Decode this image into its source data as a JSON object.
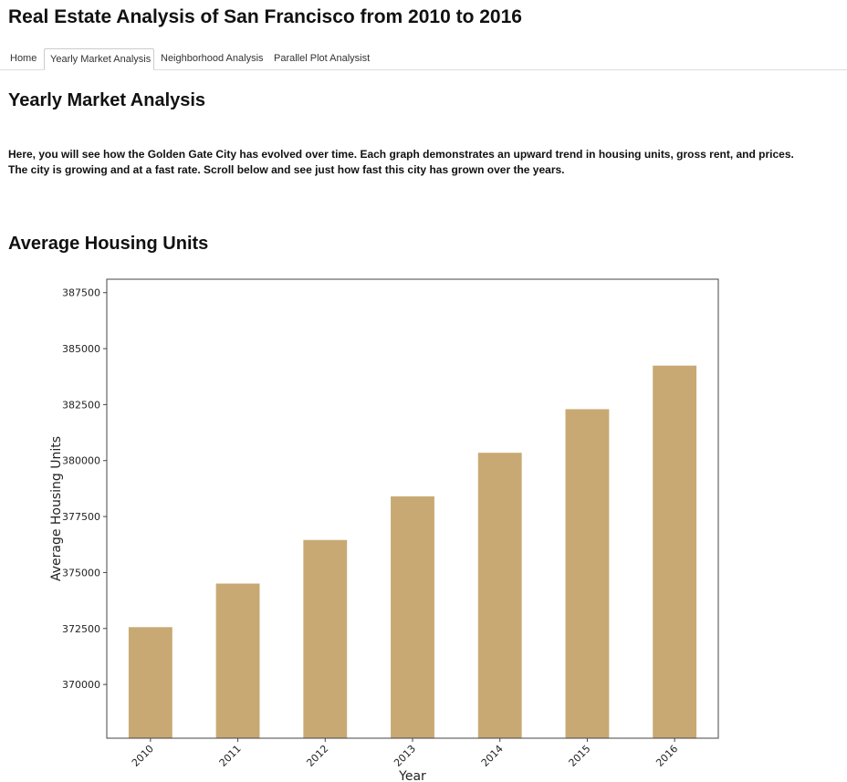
{
  "app": {
    "title": "Real Estate Analysis of San Francisco from 2010 to 2016"
  },
  "tabs": [
    {
      "label": "Home",
      "active": false
    },
    {
      "label": "Yearly Market Analysis",
      "active": true
    },
    {
      "label": "Neighborhood Analysis",
      "active": false
    },
    {
      "label": "Parallel Plot Analysist",
      "active": false
    }
  ],
  "section": {
    "title": "Yearly Market Analysis",
    "intro": "Here, you will see how the Golden Gate City has evolved over time. Each graph demonstrates an upward trend in housing units, gross rent, and prices. The city is growing and at a fast rate. Scroll below and see just how fast this city has grown over the years."
  },
  "chart_heading": "Average Housing Units",
  "colors": {
    "bar": "#c8a974",
    "axis": "#444444"
  },
  "chart_data": {
    "type": "bar",
    "categories": [
      "2010",
      "2011",
      "2012",
      "2013",
      "2014",
      "2015",
      "2016"
    ],
    "values": [
      372560,
      374507,
      376454,
      378401,
      380348,
      382295,
      384242
    ],
    "xlabel": "Year",
    "ylabel": "Average Housing Units",
    "ylim": [
      367600,
      388100
    ],
    "yticks": [
      370000,
      372500,
      375000,
      377500,
      380000,
      382500,
      385000,
      387500
    ],
    "grid": false,
    "legend": false,
    "xtick_rotation": 45
  }
}
